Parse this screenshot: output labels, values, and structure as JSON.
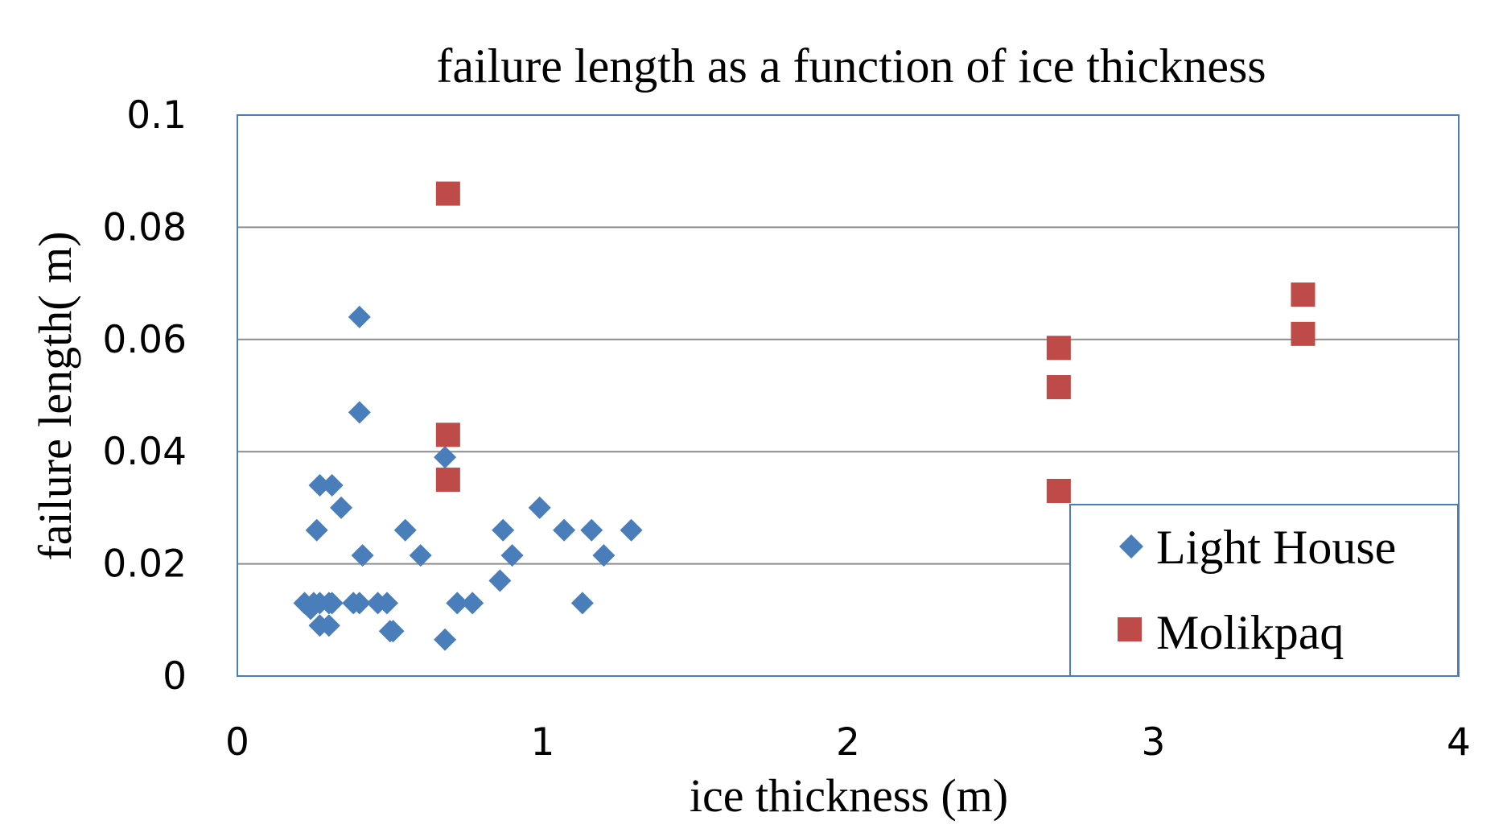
{
  "chart_data": {
    "type": "scatter",
    "title": "failure length as a function of ice thickness",
    "xlabel": "ice thickness (m)",
    "ylabel": "failure length( m)",
    "xlim": [
      0,
      4
    ],
    "ylim": [
      0,
      0.1
    ],
    "x_ticks": [
      "0",
      "1",
      "2",
      "3",
      "4"
    ],
    "y_ticks": [
      "0",
      "0.02",
      "0.04",
      "0.06",
      "0.08",
      "0.1"
    ],
    "grid": "horizontal",
    "legend_position": "bottom-right",
    "series": [
      {
        "name": "Light House",
        "marker": "diamond",
        "color": "#4a7ebb",
        "points": [
          [
            0.22,
            0.013
          ],
          [
            0.24,
            0.012
          ],
          [
            0.25,
            0.013
          ],
          [
            0.27,
            0.013
          ],
          [
            0.26,
            0.026
          ],
          [
            0.27,
            0.034
          ],
          [
            0.27,
            0.009
          ],
          [
            0.3,
            0.009
          ],
          [
            0.3,
            0.013
          ],
          [
            0.31,
            0.013
          ],
          [
            0.31,
            0.034
          ],
          [
            0.34,
            0.03
          ],
          [
            0.38,
            0.013
          ],
          [
            0.4,
            0.013
          ],
          [
            0.4,
            0.064
          ],
          [
            0.4,
            0.047
          ],
          [
            0.41,
            0.0215
          ],
          [
            0.46,
            0.013
          ],
          [
            0.49,
            0.013
          ],
          [
            0.5,
            0.008
          ],
          [
            0.51,
            0.008
          ],
          [
            0.55,
            0.026
          ],
          [
            0.6,
            0.0215
          ],
          [
            0.68,
            0.0065
          ],
          [
            0.68,
            0.039
          ],
          [
            0.72,
            0.013
          ],
          [
            0.77,
            0.013
          ],
          [
            0.86,
            0.017
          ],
          [
            0.87,
            0.026
          ],
          [
            0.9,
            0.0215
          ],
          [
            0.99,
            0.03
          ],
          [
            1.07,
            0.026
          ],
          [
            1.13,
            0.013
          ],
          [
            1.16,
            0.026
          ],
          [
            1.2,
            0.0215
          ],
          [
            1.29,
            0.026
          ]
        ]
      },
      {
        "name": "Molikpaq",
        "marker": "square",
        "color": "#be4b48",
        "points": [
          [
            0.69,
            0.086
          ],
          [
            0.69,
            0.043
          ],
          [
            0.69,
            0.035
          ],
          [
            2.69,
            0.0585
          ],
          [
            2.69,
            0.0515
          ],
          [
            2.69,
            0.033
          ],
          [
            3.49,
            0.068
          ],
          [
            3.49,
            0.061
          ]
        ]
      }
    ]
  }
}
